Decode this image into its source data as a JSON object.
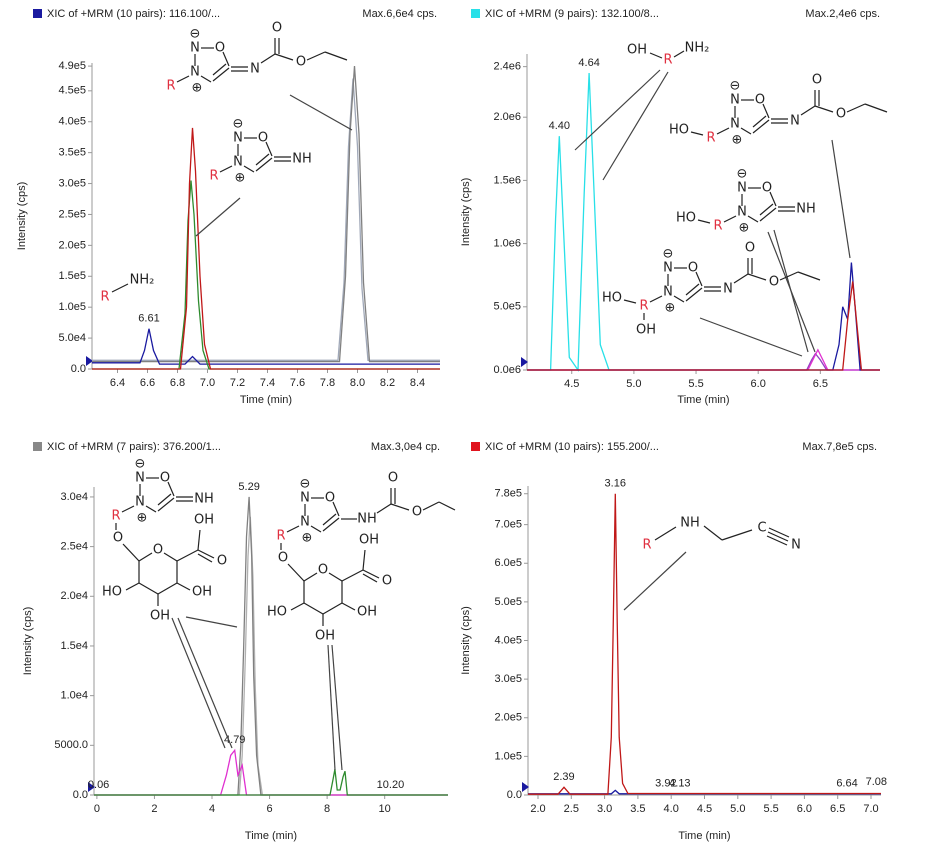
{
  "chart_data": [
    {
      "type": "line",
      "title": "XIC of +MRM (10 pairs): 116.100/...",
      "title_color": "#1a1aa0",
      "subtitle": "Max.6,6e4 cps.",
      "xlabel": "Time (min)",
      "ylabel": "Intensity (cps)",
      "xlim": [
        6.23,
        8.55
      ],
      "ylim": [
        0,
        495000
      ],
      "xticks": [
        6.4,
        6.6,
        6.8,
        {
          "value": 7,
          "label": "7.0"
        },
        7.2,
        7.4,
        7.6,
        7.8,
        {
          "value": 8,
          "label": "8.0"
        },
        8.2,
        8.4
      ],
      "yticks": [
        {
          "value": 0,
          "label": "0.0"
        },
        {
          "value": 50000,
          "label": "5.0e4"
        },
        {
          "value": 100000,
          "label": "1.0e5"
        },
        {
          "value": 150000,
          "label": "1.5e5"
        },
        {
          "value": 200000,
          "label": "2.0e5"
        },
        {
          "value": 250000,
          "label": "2.5e5"
        },
        {
          "value": 300000,
          "label": "3.0e5"
        },
        {
          "value": 350000,
          "label": "3.5e5"
        },
        {
          "value": 400000,
          "label": "4.0e5"
        },
        {
          "value": 450000,
          "label": "4.5e5"
        },
        {
          "value": 490000,
          "label": "4.9e5"
        }
      ],
      "series": [
        {
          "color": "#a0a8b8",
          "x": [
            6.23,
            7.87,
            7.91,
            7.94,
            7.97,
            8.0,
            8.03,
            8.07,
            8.55
          ],
          "values": [
            14000,
            14000,
            140000,
            360000,
            470000,
            360000,
            130000,
            14000,
            14000
          ]
        },
        {
          "color": "#808080",
          "x": [
            6.23,
            7.88,
            7.92,
            7.95,
            7.98,
            8.01,
            8.04,
            8.08,
            8.55
          ],
          "values": [
            12000,
            12000,
            150000,
            380000,
            490000,
            380000,
            140000,
            12000,
            12000
          ]
        },
        {
          "color": "#1a1aa0",
          "x": [
            6.23,
            6.55,
            6.58,
            6.61,
            6.64,
            6.68,
            6.85,
            6.9,
            6.95,
            8.55
          ],
          "values": [
            10000,
            10000,
            30000,
            65000,
            30000,
            8000,
            8000,
            20000,
            8000,
            8000
          ]
        },
        {
          "color": "#2e8b2e",
          "x": [
            6.23,
            6.81,
            6.85,
            6.87,
            6.89,
            6.91,
            6.94,
            6.97,
            7.01,
            8.55
          ],
          "values": [
            0,
            0,
            90000,
            240000,
            305000,
            250000,
            110000,
            30000,
            0,
            0
          ]
        },
        {
          "color": "#c01818",
          "x": [
            6.23,
            6.82,
            6.86,
            6.88,
            6.9,
            6.92,
            6.95,
            6.98,
            7.02,
            8.55
          ],
          "values": [
            0,
            0,
            100000,
            300000,
            390000,
            320000,
            150000,
            40000,
            0,
            0
          ]
        }
      ],
      "annotations": [
        {
          "text": "6.61",
          "x": 6.61,
          "y": 65000
        }
      ],
      "structures": [
        {
          "atoms": [
            "⊖",
            "N",
            "O",
            "N",
            "⊕",
            "R",
            "N",
            "O",
            "O"
          ]
        },
        {
          "atoms": [
            "⊖",
            "N",
            "O",
            "N",
            "⊕",
            "R",
            "NH"
          ]
        },
        {
          "atoms": [
            "R",
            "NH₂"
          ]
        }
      ]
    },
    {
      "type": "line",
      "title": "XIC of +MRM (9 pairs): 132.100/8...",
      "title_color": "#28e0e8",
      "subtitle": "Max.2,4e6 cps.",
      "xlabel": "Time (min)",
      "ylabel": "Intensity (cps)",
      "xlim": [
        4.14,
        6.98
      ],
      "ylim": [
        0,
        2500000
      ],
      "xticks": [
        4.5,
        {
          "value": 5,
          "label": "5.0"
        },
        5.5,
        {
          "value": 6,
          "label": "6.0"
        },
        6.5
      ],
      "yticks": [
        {
          "value": 0,
          "label": "0.0e6"
        },
        {
          "value": 500000,
          "label": "5.0e5"
        },
        {
          "value": 1000000,
          "label": "1.0e6"
        },
        {
          "value": 1500000,
          "label": "1.5e6"
        },
        {
          "value": 2000000,
          "label": "2.0e6"
        },
        {
          "value": 2400000,
          "label": "2.4e6"
        }
      ],
      "series": [
        {
          "color": "#28e0e8",
          "x": [
            4.14,
            4.33,
            4.37,
            4.4,
            4.43,
            4.48,
            4.55,
            4.6,
            4.64,
            4.68,
            4.73,
            4.8,
            6.98
          ],
          "values": [
            0,
            0,
            1200000,
            1850000,
            1200000,
            100000,
            0,
            1400000,
            2350000,
            1400000,
            200000,
            0,
            0
          ]
        },
        {
          "color": "#9040c0",
          "x": [
            4.14,
            6.39,
            6.43,
            6.46,
            6.5,
            6.55,
            6.98
          ],
          "values": [
            0,
            0,
            80000,
            130000,
            80000,
            0,
            0
          ]
        },
        {
          "color": "#e030d0",
          "x": [
            4.14,
            6.4,
            6.45,
            6.48,
            6.51,
            6.56,
            6.98
          ],
          "values": [
            0,
            0,
            100000,
            160000,
            100000,
            0,
            0
          ]
        },
        {
          "color": "#1a1aa0",
          "x": [
            4.14,
            6.6,
            6.65,
            6.68,
            6.72,
            6.75,
            6.78,
            6.82,
            6.98
          ],
          "values": [
            0,
            0,
            200000,
            500000,
            400000,
            850000,
            500000,
            0,
            0
          ]
        },
        {
          "color": "#c01818",
          "x": [
            4.14,
            6.68,
            6.72,
            6.76,
            6.79,
            6.83,
            6.98
          ],
          "values": [
            0,
            0,
            400000,
            700000,
            400000,
            0,
            0
          ]
        }
      ],
      "annotations": [
        {
          "text": "4.40",
          "x": 4.4,
          "y": 1850000
        },
        {
          "text": "4.64",
          "x": 4.64,
          "y": 2350000
        }
      ],
      "structures": [
        {
          "atoms": [
            "OH",
            "R",
            "NH₂"
          ]
        },
        {
          "atoms": [
            "⊖",
            "N",
            "O",
            "N",
            "⊕",
            "R",
            "HO",
            "N",
            "O",
            "O"
          ]
        },
        {
          "atoms": [
            "⊖",
            "N",
            "O",
            "N",
            "⊕",
            "R",
            "HO",
            "NH"
          ]
        },
        {
          "atoms": [
            "⊖",
            "N",
            "O",
            "N",
            "⊕",
            "R",
            "HO",
            "OH",
            "N",
            "O",
            "O"
          ]
        }
      ]
    },
    {
      "type": "line",
      "title": "XIC of +MRM (7 pairs): 376.200/1...",
      "title_color": "#888888",
      "subtitle": "Max.3,0e4 cp.",
      "xlabel": "Time (min)",
      "ylabel": "Intensity (cps)",
      "xlim": [
        -0.1,
        12.2
      ],
      "ylim": [
        0,
        31000
      ],
      "xticks": [
        0,
        2,
        4,
        6,
        8,
        10
      ],
      "yticks": [
        {
          "value": 0,
          "label": "0.0"
        },
        {
          "value": 5000,
          "label": "5000.0"
        },
        {
          "value": 10000,
          "label": "1.0e4"
        },
        {
          "value": 15000,
          "label": "1.5e4"
        },
        {
          "value": 20000,
          "label": "2.0e4"
        },
        {
          "value": 25000,
          "label": "2.5e4"
        },
        {
          "value": 30000,
          "label": "3.0e4"
        }
      ],
      "series": [
        {
          "color": "#b0b0b0",
          "x": [
            -0.1,
            4.95,
            5.05,
            5.15,
            5.25,
            5.33,
            5.42,
            5.5,
            5.6,
            5.75,
            12.2
          ],
          "values": [
            0,
            0,
            4000,
            13000,
            24000,
            28000,
            22000,
            11000,
            3000,
            0,
            0
          ]
        },
        {
          "color": "#808080",
          "x": [
            -0.1,
            4.9,
            5.0,
            5.1,
            5.2,
            5.29,
            5.38,
            5.45,
            5.55,
            5.7,
            12.2
          ],
          "values": [
            0,
            0,
            5000,
            15000,
            26000,
            30000,
            24000,
            12000,
            4000,
            0,
            0
          ]
        },
        {
          "color": "#e030d0",
          "x": [
            -0.1,
            4.3,
            4.5,
            4.65,
            4.79,
            4.9,
            5.05,
            5.2,
            12.2
          ],
          "values": [
            0,
            0,
            2000,
            4000,
            4500,
            2000,
            3000,
            0,
            0
          ]
        },
        {
          "color": "#2e8b2e",
          "x": [
            -0.1,
            8.1,
            8.2,
            8.27,
            8.35,
            8.45,
            8.55,
            8.62,
            8.7,
            12.2
          ],
          "values": [
            0,
            0,
            1500,
            2600,
            500,
            500,
            1800,
            2400,
            0,
            0
          ]
        }
      ],
      "annotations": [
        {
          "text": "0.06",
          "x": 0.06,
          "y": 0
        },
        {
          "text": "4.79",
          "x": 4.79,
          "y": 4500
        },
        {
          "text": "5.29",
          "x": 5.29,
          "y": 30000
        },
        {
          "text": "10.20",
          "x": 10.2,
          "y": 0
        }
      ],
      "structures": [
        {
          "atoms": [
            "⊖",
            "N",
            "O",
            "N",
            "⊕",
            "R",
            "NH",
            "O",
            "O",
            "OH",
            "O",
            "HO",
            "OH",
            "OH"
          ]
        },
        {
          "atoms": [
            "⊖",
            "N",
            "O",
            "N",
            "⊕",
            "R",
            "NH",
            "O",
            "O",
            "O",
            "O",
            "OH",
            "O",
            "HO",
            "OH",
            "OH"
          ]
        }
      ]
    },
    {
      "type": "line",
      "title": "XIC of +MRM (10 pairs): 155.200/...",
      "title_color": "#e0141e",
      "subtitle": "Max.7,8e5 cps.",
      "xlabel": "Time (min)",
      "ylabel": "Intensity (cps)",
      "xlim": [
        1.85,
        7.15
      ],
      "ylim": [
        0,
        800000
      ],
      "xticks": [
        {
          "value": 2,
          "label": "2.0"
        },
        2.5,
        {
          "value": 3,
          "label": "3.0"
        },
        3.5,
        {
          "value": 4,
          "label": "4.0"
        },
        4.5,
        {
          "value": 5,
          "label": "5.0"
        },
        5.5,
        {
          "value": 6,
          "label": "6.0"
        },
        6.5,
        {
          "value": 7,
          "label": "7.0"
        }
      ],
      "yticks": [
        {
          "value": 0,
          "label": "0.0"
        },
        {
          "value": 100000,
          "label": "1.0e5"
        },
        {
          "value": 200000,
          "label": "2.0e5"
        },
        {
          "value": 300000,
          "label": "3.0e5"
        },
        {
          "value": 400000,
          "label": "4.0e5"
        },
        {
          "value": 500000,
          "label": "5.0e5"
        },
        {
          "value": 600000,
          "label": "6.0e5"
        },
        {
          "value": 700000,
          "label": "7.0e5"
        },
        {
          "value": 780000,
          "label": "7.8e5"
        }
      ],
      "series": [
        {
          "color": "#1a1aa0",
          "x": [
            1.85,
            3.1,
            3.16,
            3.22,
            7.15
          ],
          "values": [
            3000,
            3000,
            12000,
            3000,
            3000
          ]
        },
        {
          "color": "#c01818",
          "x": [
            1.85,
            2.3,
            2.39,
            2.48,
            3.05,
            3.1,
            3.13,
            3.16,
            3.19,
            3.22,
            3.27,
            3.35,
            7.15
          ],
          "values": [
            2000,
            2000,
            20000,
            2000,
            2000,
            150000,
            450000,
            780000,
            450000,
            150000,
            30000,
            4000,
            4000
          ]
        }
      ],
      "annotations": [
        {
          "text": "2.39",
          "x": 2.39,
          "y": 20000
        },
        {
          "text": "3.16",
          "x": 3.16,
          "y": 780000
        },
        {
          "text": "3.92",
          "x": 3.92,
          "y": 3000
        },
        {
          "text": "4.13",
          "x": 4.13,
          "y": 3000
        },
        {
          "text": "6.64",
          "x": 6.64,
          "y": 3000
        },
        {
          "text": "7.08",
          "x": 7.08,
          "y": 8000
        }
      ],
      "structures": [
        {
          "atoms": [
            "R",
            "NH",
            "C",
            "N"
          ]
        }
      ]
    }
  ]
}
